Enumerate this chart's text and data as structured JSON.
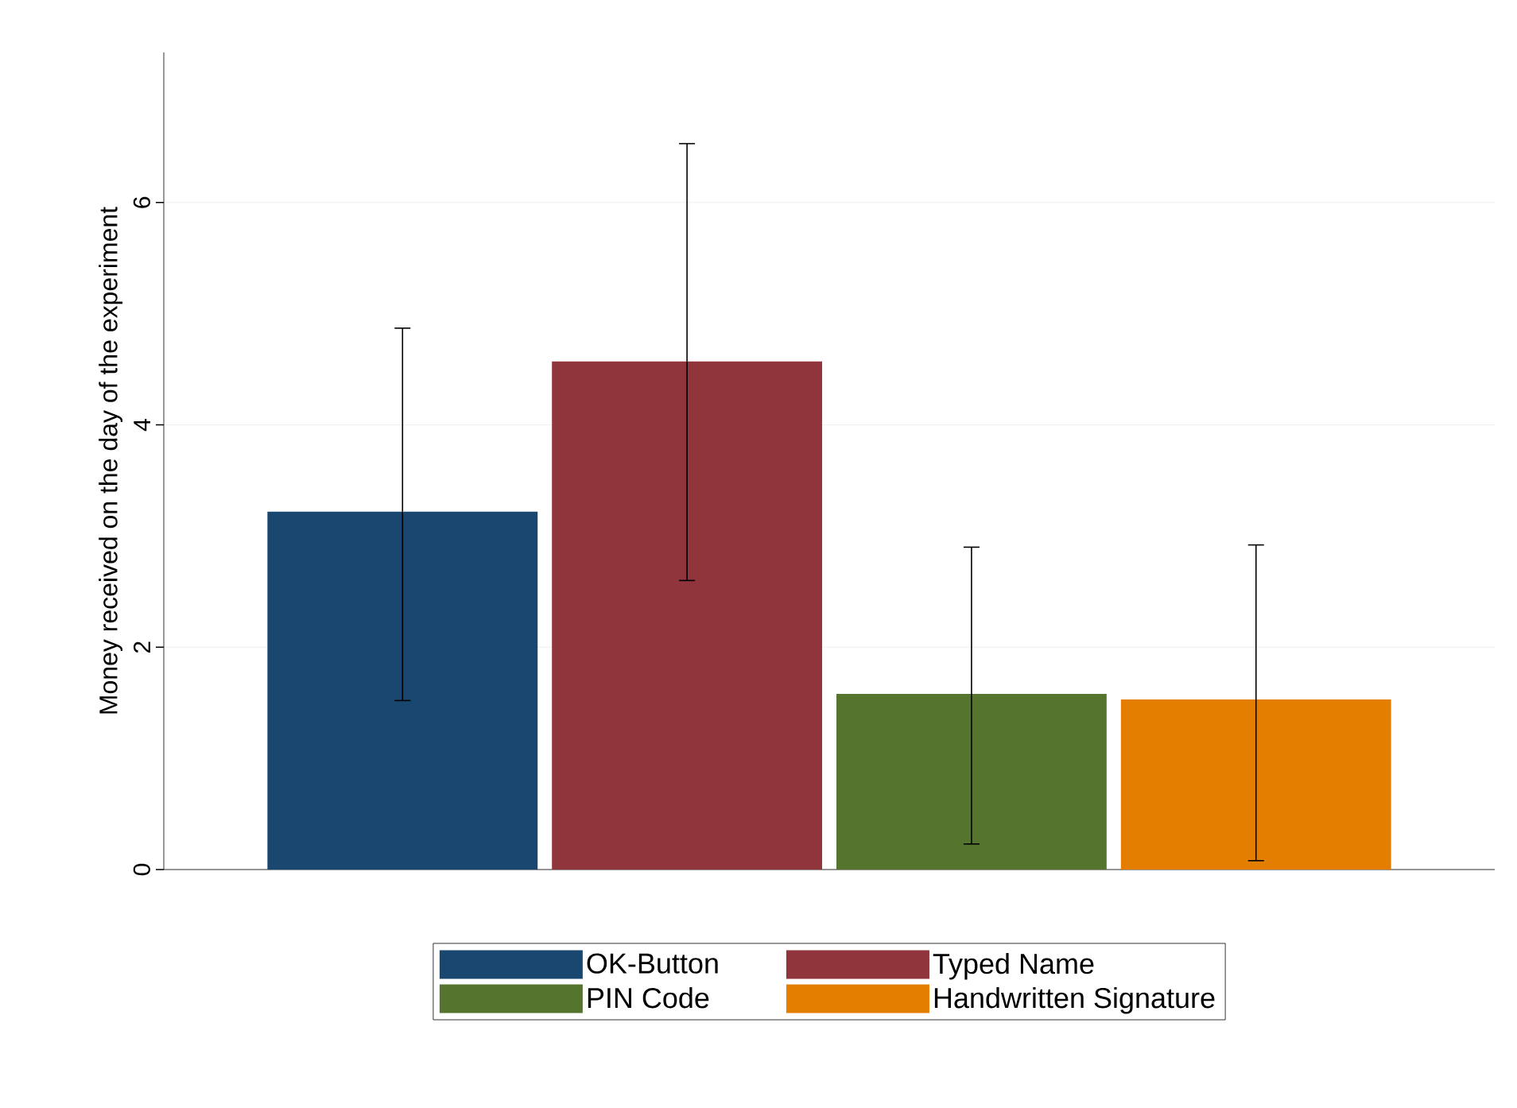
{
  "chart_data": {
    "type": "bar",
    "ylabel": "Money received on the day of the experiment",
    "categories": [
      null
    ],
    "series": [
      {
        "name": "OK-Button",
        "color": "#1a476f",
        "values": [
          3.22
        ],
        "errors": [
          [
            1.52,
            4.87
          ]
        ]
      },
      {
        "name": "Typed Name",
        "color": "#90353b",
        "values": [
          4.57
        ],
        "errors": [
          [
            2.6,
            6.53
          ]
        ]
      },
      {
        "name": "PIN Code",
        "color": "#55752f",
        "values": [
          1.58
        ],
        "errors": [
          [
            0.23,
            2.9
          ]
        ]
      },
      {
        "name": "Handwritten Signature",
        "color": "#e37e00",
        "values": [
          1.53
        ],
        "errors": [
          [
            0.08,
            2.92
          ]
        ]
      }
    ],
    "ylim": [
      0,
      7.35
    ],
    "yticks": [
      0,
      2,
      4,
      6
    ],
    "grid": "y",
    "legend": "bottom"
  }
}
